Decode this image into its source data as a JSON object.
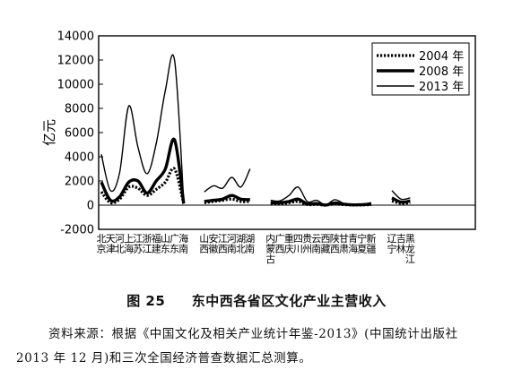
{
  "chart_data": {
    "type": "line",
    "ylabel": "亿元",
    "xlabel": "",
    "ylim": [
      -2000,
      14000
    ],
    "yticks": [
      -2000,
      0,
      2000,
      4000,
      6000,
      8000,
      10000,
      12000,
      14000
    ],
    "legend_position": "top-right",
    "groups": [
      {
        "categories": [
          "北京",
          "天津",
          "河北",
          "上海",
          "江苏",
          "浙江",
          "福建",
          "山东",
          "广东",
          "海南"
        ]
      },
      {
        "categories": [
          "山西",
          "安徽",
          "江西",
          "河南",
          "湖北",
          "湖南"
        ]
      },
      {
        "categories": [
          "内蒙古",
          "广西",
          "重庆",
          "四川",
          "贵州",
          "云南",
          "西藏",
          "陕西",
          "甘肃",
          "青海",
          "宁夏",
          "新疆"
        ]
      },
      {
        "categories": [
          "辽宁",
          "吉林",
          "黑龙江"
        ]
      }
    ],
    "series": [
      {
        "name": "2004 年",
        "style": "dotted",
        "values": [
          [
            1100,
            200,
            500,
            1500,
            1400,
            800,
            1300,
            1900,
            3000,
            120
          ],
          [
            200,
            300,
            400,
            500,
            300,
            300
          ],
          [
            100,
            100,
            200,
            300,
            50,
            60,
            5,
            90,
            40,
            15,
            20,
            40
          ],
          [
            350,
            150,
            200
          ]
        ]
      },
      {
        "name": "2008 年",
        "style": "thick",
        "values": [
          [
            1900,
            400,
            700,
            1900,
            2000,
            1000,
            2000,
            3000,
            5400,
            160
          ],
          [
            300,
            400,
            500,
            800,
            500,
            450
          ],
          [
            200,
            200,
            300,
            500,
            100,
            130,
            10,
            180,
            80,
            25,
            40,
            80
          ],
          [
            600,
            250,
            350
          ]
        ]
      },
      {
        "name": "2013 年",
        "style": "thin",
        "values": [
          [
            4200,
            1200,
            2700,
            8200,
            4800,
            2600,
            5100,
            9500,
            12000,
            400
          ],
          [
            1100,
            1600,
            1400,
            2300,
            1500,
            3000
          ],
          [
            400,
            350,
            800,
            1500,
            300,
            400,
            20,
            450,
            150,
            50,
            80,
            200
          ],
          [
            1200,
            500,
            600
          ]
        ]
      }
    ]
  },
  "caption": {
    "figure_no": "图 25",
    "title": "东中西各省区文化产业主营收入"
  },
  "source_note": "资料来源：根据《中国文化及相关产业统计年鉴-2013》(中国统计出版社 2013 年 12 月)和三次全国经济普查数据汇总测算。"
}
